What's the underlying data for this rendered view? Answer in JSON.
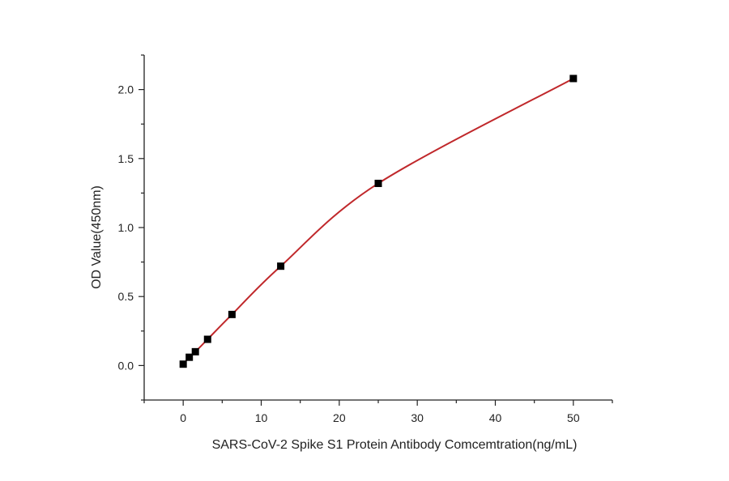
{
  "chart_data": {
    "type": "scatter",
    "title": "",
    "xlabel": "SARS-CoV-2 Spike S1 Protein Antibody Comcemtration(ng/mL)",
    "ylabel": "OD Value(450nm)",
    "xlim": [
      -5,
      55
    ],
    "ylim": [
      -0.25,
      2.25
    ],
    "x_ticks": [
      0,
      10,
      20,
      30,
      40,
      50
    ],
    "x_tick_labels": [
      "0",
      "10",
      "20",
      "30",
      "40",
      "50"
    ],
    "y_ticks": [
      0.0,
      0.5,
      1.0,
      1.5,
      2.0
    ],
    "y_tick_labels": [
      "0.0",
      "0.5",
      "1.0",
      "1.5",
      "2.0"
    ],
    "grid": false,
    "legend": "none",
    "series": [
      {
        "x": [
          0,
          0.78,
          1.56,
          3.125,
          6.25,
          12.5,
          25,
          50
        ],
        "y": [
          0.01,
          0.06,
          0.1,
          0.19,
          0.37,
          0.72,
          1.32,
          2.08
        ],
        "marker": "square",
        "color": "#000000"
      }
    ],
    "fit_curve": {
      "type": "smooth",
      "color": "#c0282b",
      "x": [
        0,
        0.78,
        1.56,
        3.125,
        6.25,
        12.5,
        25,
        50
      ],
      "y": [
        0.01,
        0.06,
        0.1,
        0.19,
        0.37,
        0.72,
        1.32,
        2.08
      ]
    }
  }
}
